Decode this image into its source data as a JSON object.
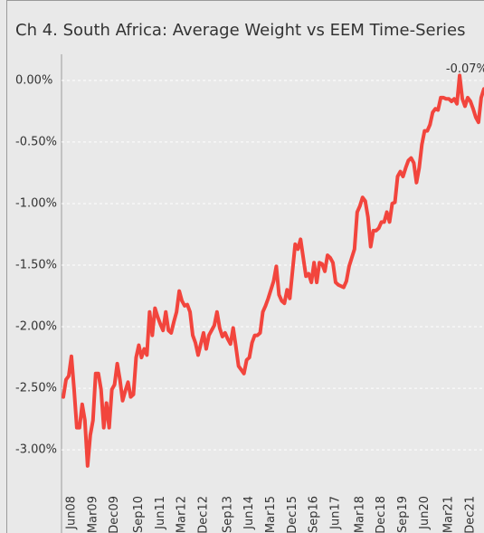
{
  "chart_data": {
    "type": "line",
    "title": "Ch 4. South Africa:  Average Weight vs EEM Time-Series",
    "annotation": "-0.07%",
    "categories": [
      null,
      null,
      null,
      "Jun08",
      null,
      null,
      null,
      null,
      null,
      null,
      null,
      "Mar09",
      null,
      null,
      null,
      null,
      null,
      null,
      null,
      "Dec09",
      null,
      null,
      null,
      null,
      null,
      null,
      null,
      null,
      "Sep10",
      null,
      null,
      null,
      null,
      null,
      null,
      null,
      "Jun11",
      null,
      null,
      null,
      null,
      null,
      null,
      null,
      "Mar12",
      null,
      null,
      null,
      null,
      null,
      null,
      null,
      "Dec12",
      null,
      null,
      null,
      null,
      null,
      null,
      null,
      null,
      "Sep13",
      null,
      null,
      null,
      null,
      null,
      null,
      null,
      "Jun14",
      null,
      null,
      null,
      null,
      null,
      null,
      null,
      "Mar15",
      null,
      null,
      null,
      null,
      null,
      null,
      null,
      "Dec15",
      null,
      null,
      null,
      null,
      null,
      null,
      null,
      "Sep16",
      null,
      null,
      null,
      null,
      null,
      null,
      null,
      "Jun17",
      null,
      null,
      null,
      null,
      null,
      null,
      null,
      null,
      "Mar18",
      null,
      null,
      null,
      null,
      null,
      null,
      null,
      "Dec18",
      null,
      null,
      null,
      null,
      null,
      null,
      null,
      "Sep19",
      null,
      null,
      null,
      null,
      null,
      null,
      null,
      "Jun20",
      null,
      null,
      null,
      null,
      null,
      null,
      null,
      null,
      "Mar21",
      null,
      null,
      null,
      null,
      null,
      null,
      null,
      "Dec21",
      null,
      null,
      null,
      null,
      null
    ],
    "series": [
      {
        "name": "Average Weight vs EEM",
        "color": "#f2453d",
        "values": [
          -2.57,
          -2.43,
          -2.4,
          -2.24,
          -2.51,
          -2.82,
          -2.82,
          -2.63,
          -2.76,
          -3.13,
          -2.88,
          -2.76,
          -2.38,
          -2.38,
          -2.51,
          -2.82,
          -2.62,
          -2.82,
          -2.51,
          -2.47,
          -2.3,
          -2.43,
          -2.6,
          -2.52,
          -2.45,
          -2.57,
          -2.55,
          -2.25,
          -2.15,
          -2.25,
          -2.18,
          -2.23,
          -1.88,
          -2.07,
          -1.85,
          -1.92,
          -1.98,
          -2.03,
          -1.88,
          -2.03,
          -2.05,
          -1.96,
          -1.88,
          -1.71,
          -1.79,
          -1.83,
          -1.82,
          -1.88,
          -2.07,
          -2.13,
          -2.23,
          -2.14,
          -2.05,
          -2.18,
          -2.07,
          -2.03,
          -1.99,
          -1.88,
          -2.01,
          -2.08,
          -2.05,
          -2.1,
          -2.14,
          -2.01,
          -2.16,
          -2.32,
          -2.35,
          -2.38,
          -2.27,
          -2.25,
          -2.13,
          -2.07,
          -2.07,
          -2.05,
          -1.88,
          -1.83,
          -1.77,
          -1.7,
          -1.63,
          -1.51,
          -1.74,
          -1.79,
          -1.81,
          -1.7,
          -1.77,
          -1.55,
          -1.33,
          -1.37,
          -1.29,
          -1.44,
          -1.59,
          -1.57,
          -1.64,
          -1.48,
          -1.64,
          -1.48,
          -1.49,
          -1.55,
          -1.42,
          -1.44,
          -1.48,
          -1.64,
          -1.66,
          -1.67,
          -1.68,
          -1.63,
          -1.51,
          -1.44,
          -1.37,
          -1.07,
          -1.02,
          -0.95,
          -0.98,
          -1.11,
          -1.35,
          -1.22,
          -1.22,
          -1.2,
          -1.15,
          -1.15,
          -1.07,
          -1.15,
          -1.0,
          -0.99,
          -0.78,
          -0.74,
          -0.78,
          -0.71,
          -0.65,
          -0.63,
          -0.67,
          -0.83,
          -0.71,
          -0.52,
          -0.41,
          -0.41,
          -0.36,
          -0.26,
          -0.23,
          -0.24,
          -0.14,
          -0.14,
          -0.15,
          -0.15,
          -0.17,
          -0.15,
          -0.19,
          0.04,
          -0.15,
          -0.21,
          -0.14,
          -0.17,
          -0.23,
          -0.3,
          -0.34,
          -0.14,
          -0.07
        ]
      }
    ],
    "ylim": [
      -3.3,
      0.3
    ],
    "yticks": [
      {
        "value": 0,
        "label": "0.00%"
      },
      {
        "value": -0.5,
        "label": "-0.50%"
      },
      {
        "value": -1,
        "label": "-1.00%"
      },
      {
        "value": -1.5,
        "label": "-1.50%"
      },
      {
        "value": -2,
        "label": "-2.00%"
      },
      {
        "value": -2.5,
        "label": "-2.50%"
      },
      {
        "value": -3,
        "label": "-3.00%"
      }
    ],
    "grid": true
  }
}
